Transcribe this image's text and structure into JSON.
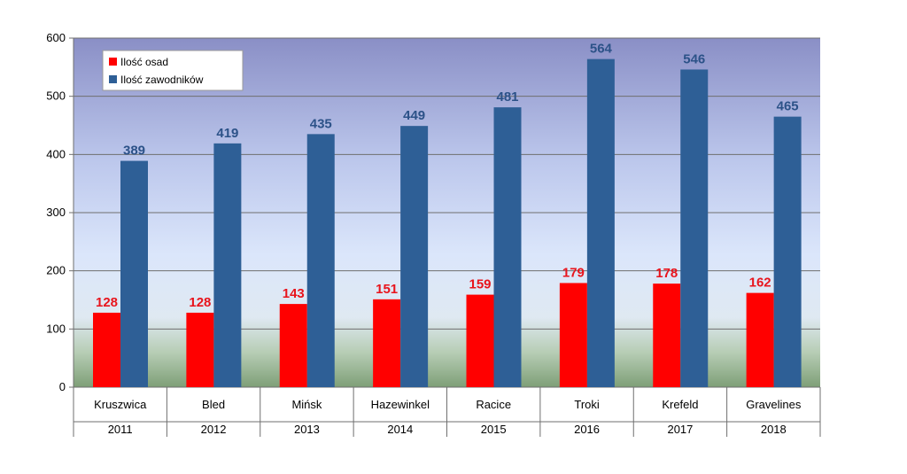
{
  "chart_data": {
    "type": "bar",
    "categories": [
      "Kruszwica",
      "Bled",
      "Mińsk",
      "Hazewinkel",
      "Racice",
      "Troki",
      "Krefeld",
      "Gravelines"
    ],
    "years": [
      "2011",
      "2012",
      "2013",
      "2014",
      "2015",
      "2016",
      "2017",
      "2018"
    ],
    "series": [
      {
        "name": "Ilość osad",
        "values": [
          128,
          128,
          143,
          151,
          159,
          179,
          178,
          162
        ],
        "color": "#ff0000",
        "label_color": "#e8141c"
      },
      {
        "name": "Ilość zawodników",
        "values": [
          389,
          419,
          435,
          449,
          481,
          564,
          546,
          465
        ],
        "color": "#2e5f96",
        "label_color": "#2c5288"
      }
    ],
    "ylim": [
      0,
      600
    ],
    "yticks": [
      0,
      100,
      200,
      300,
      400,
      500,
      600
    ],
    "grid": true,
    "legend_position": "top-left",
    "data_labels": true
  }
}
